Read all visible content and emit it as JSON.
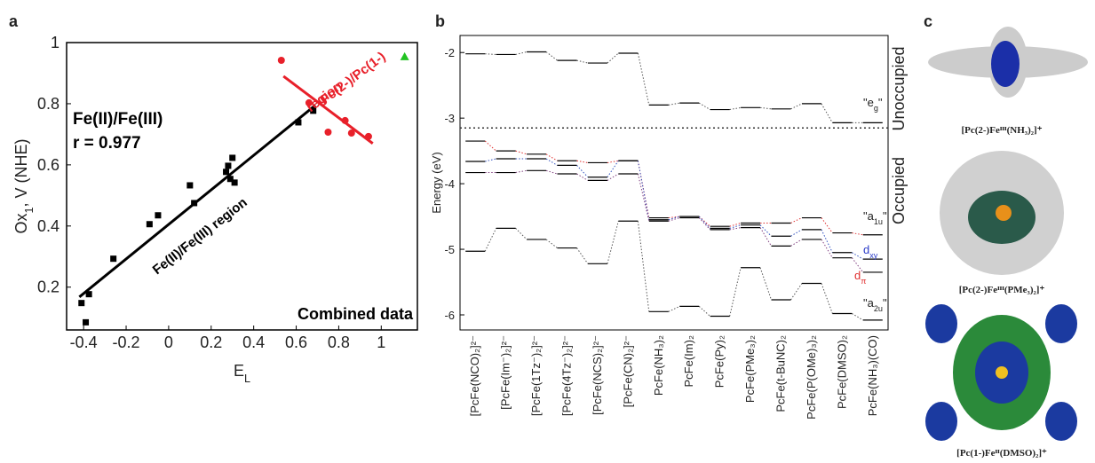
{
  "chart_data": [
    {
      "type": "scatter",
      "panel_label": "a",
      "xlabel": [
        "E",
        "L"
      ],
      "ylabel": [
        "Ox",
        "1",
        ", V (NHE)"
      ],
      "xlim": [
        -0.48,
        1.17
      ],
      "ylim": [
        0.06,
        1.0
      ],
      "xticks": [
        -0.4,
        -0.2,
        0,
        0.2,
        0.4,
        0.6,
        0.8,
        1
      ],
      "yticks": [
        0.2,
        0.4,
        0.6,
        0.8,
        1
      ],
      "series": [
        {
          "color": "#000000",
          "marker": "square",
          "x": [
            -0.41,
            -0.39,
            -0.375,
            -0.26,
            -0.09,
            -0.05,
            0.1,
            0.12,
            0.27,
            0.28,
            0.3,
            0.29,
            0.31,
            0.61,
            0.68
          ],
          "values": [
            0.148,
            0.085,
            0.177,
            0.293,
            0.406,
            0.435,
            0.533,
            0.475,
            0.577,
            0.597,
            0.623,
            0.554,
            0.542,
            0.739,
            0.777
          ]
        },
        {
          "color": "#e8202a",
          "marker": "circle",
          "x": [
            0.53,
            0.66,
            0.75,
            0.83,
            0.86,
            0.94
          ],
          "values": [
            0.942,
            0.803,
            0.707,
            0.745,
            0.704,
            0.693
          ]
        },
        {
          "color": "#22c322",
          "marker": "triangle",
          "x": [
            1.11
          ],
          "values": [
            0.954
          ]
        }
      ],
      "fits": [
        {
          "color": "#000000",
          "x": [
            -0.42,
            0.69
          ],
          "values": [
            0.168,
            0.795
          ]
        },
        {
          "color": "#e8202a",
          "x": [
            0.54,
            0.96
          ],
          "values": [
            0.89,
            0.67
          ]
        }
      ],
      "annotations": [
        "Fe(II)/Fe(III)",
        "r = 0.977",
        "Fe(II)/Fe(III) region",
        "Pc(2-)/Pc(1-)",
        "region",
        "Combined data"
      ]
    },
    {
      "type": "level",
      "panel_label": "b",
      "ylabel": "Energy (eV)",
      "ylim": [
        -6.23,
        -1.74
      ],
      "yticks": [
        -2,
        -3,
        -4,
        -5,
        -6
      ],
      "separator": -3.15,
      "categories": [
        "[PcFe(NCO)₂]²⁻",
        "[PcFe(Im⁻)₂]²⁻",
        "[PcFe(1Tz⁻)₂]²⁻",
        "[PcFe(4Tz⁻)₂]²⁻",
        "[PcFe(NCS)₂]²⁻",
        "[PcFe(CN)₂]²⁻",
        "PcFe(NH₃)₂",
        "PcFe(Im)₂",
        "PcFe(Py)₂",
        "PcFe(PMe₃)₂",
        "PcFe(t-BuNC)₂",
        "PcFe(P(OMe)₃)₂",
        "PcFe(DMSO)₂",
        "PcFe(NH₃)(CO)"
      ],
      "level_color": "#000000",
      "series": [
        {
          "color": "#555555",
          "values": [
            -2.02,
            -2.03,
            -1.99,
            -2.12,
            -2.16,
            -2.01,
            -2.8,
            -2.77,
            -2.87,
            -2.84,
            -2.86,
            -2.78,
            -3.07,
            -3.07
          ]
        },
        {
          "color": "#e03030",
          "values": [
            -3.35,
            -3.5,
            -3.55,
            -3.65,
            -3.68,
            -3.65,
            -4.52,
            -4.5,
            -4.65,
            -4.6,
            -4.6,
            -4.52,
            -4.75,
            -4.78
          ]
        },
        {
          "color": "#3050c0",
          "values": [
            -3.66,
            -3.62,
            -3.62,
            -3.72,
            -3.9,
            -3.65,
            -4.55,
            -4.5,
            -4.68,
            -4.63,
            -4.8,
            -4.7,
            -5.05,
            -5.15
          ]
        },
        {
          "color": "#804080",
          "values": [
            -3.83,
            -3.83,
            -3.8,
            -3.85,
            -3.95,
            -3.85,
            -4.57,
            -4.52,
            -4.7,
            -4.67,
            -4.95,
            -4.85,
            -5.13,
            -5.35
          ]
        },
        {
          "color": "#555555",
          "values": [
            -5.03,
            -4.68,
            -4.85,
            -4.98,
            -5.22,
            -4.57,
            -5.95,
            -5.87,
            -6.02,
            -5.28,
            -5.77,
            -5.52,
            -5.98,
            -6.08
          ]
        }
      ],
      "level_labels": [
        [
          "\"e",
          "g",
          "\""
        ],
        [
          "\"a",
          "1u",
          "\""
        ],
        [
          "d",
          "xy"
        ],
        [
          "d",
          "π"
        ],
        [
          "\"a",
          "2u",
          "\""
        ]
      ],
      "region_labels": [
        "Unoccupied",
        "Occupied"
      ]
    }
  ],
  "panel_c": {
    "label": "c",
    "captions": [
      "[Pc(2-)Feᴵᴵᴵ(NH₃)₂]⁺",
      "[Pc(2-)Feᴵᴵᴵ(PMe₃)₂]⁺",
      "[Pc(1-)Feᴵᴵ(DMSO)₂]⁺"
    ]
  }
}
